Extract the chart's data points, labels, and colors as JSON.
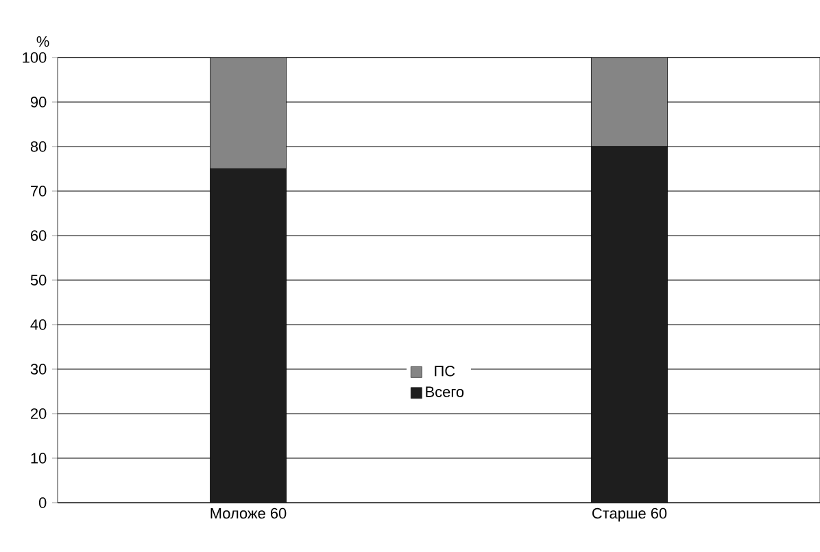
{
  "chart_data": {
    "type": "bar",
    "stacked": true,
    "ylabel": "%",
    "categories": [
      "Моложе 60",
      "Старше 60"
    ],
    "series": [
      {
        "name": "Всего",
        "color": "#1e1e1e",
        "values": [
          75,
          80
        ]
      },
      {
        "name": "ПС",
        "color": "#858585",
        "values": [
          25,
          20
        ]
      }
    ],
    "ylim": [
      0,
      100
    ],
    "yticks": [
      0,
      10,
      20,
      30,
      40,
      50,
      60,
      70,
      80,
      90,
      100
    ],
    "grid": "y",
    "legend": "center"
  }
}
